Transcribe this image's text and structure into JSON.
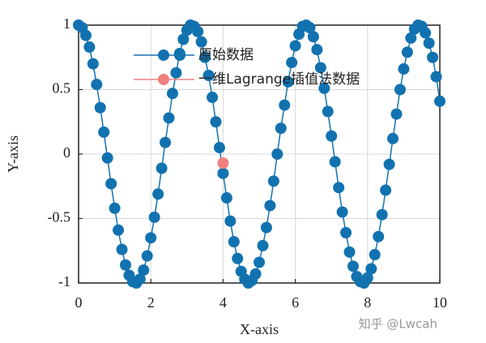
{
  "chart_data": {
    "type": "line",
    "xlabel": "X-axis",
    "ylabel": "Y-axis",
    "xlim": [
      0,
      10
    ],
    "ylim": [
      -1,
      1
    ],
    "xticks": [
      0,
      2,
      4,
      6,
      8,
      10
    ],
    "yticks": [
      -1,
      -0.5,
      0,
      0.5,
      1
    ],
    "grid": true,
    "legend": "top",
    "watermark": "知乎 @Lwcah",
    "series": [
      {
        "name": "原始数据",
        "color": "#1272b0",
        "x": [
          0,
          0.1,
          0.2,
          0.3,
          0.4,
          0.5,
          0.6,
          0.7,
          0.8,
          0.9,
          1,
          1.1,
          1.2,
          1.3,
          1.4,
          1.5,
          1.6,
          1.7,
          1.8,
          1.9,
          2,
          2.1,
          2.2,
          2.3,
          2.4,
          2.5,
          2.6,
          2.7,
          2.8,
          2.9,
          3,
          3.1,
          3.2,
          3.3,
          3.4,
          3.5,
          3.6,
          3.7,
          3.8,
          3.9,
          4,
          4.1,
          4.2,
          4.3,
          4.4,
          4.5,
          4.6,
          4.7,
          4.8,
          4.9,
          5,
          5.1,
          5.2,
          5.3,
          5.4,
          5.5,
          5.6,
          5.7,
          5.8,
          5.9,
          6,
          6.1,
          6.2,
          6.3,
          6.4,
          6.5,
          6.6,
          6.7,
          6.8,
          6.9,
          7,
          7.1,
          7.2,
          7.3,
          7.4,
          7.5,
          7.6,
          7.7,
          7.8,
          7.9,
          8,
          8.1,
          8.2,
          8.3,
          8.4,
          8.5,
          8.6,
          8.7,
          8.8,
          8.9,
          9,
          9.1,
          9.2,
          9.3,
          9.4,
          9.5,
          9.6,
          9.7,
          9.8,
          9.9,
          10
        ],
        "values": [
          1.0,
          0.98,
          0.92,
          0.83,
          0.7,
          0.54,
          0.36,
          0.17,
          -0.03,
          -0.23,
          -0.42,
          -0.59,
          -0.74,
          -0.86,
          -0.94,
          -0.99,
          -1.0,
          -0.97,
          -0.9,
          -0.79,
          -0.65,
          -0.49,
          -0.31,
          -0.11,
          0.09,
          0.28,
          0.47,
          0.63,
          0.78,
          0.89,
          0.96,
          1.0,
          0.99,
          0.95,
          0.87,
          0.75,
          0.61,
          0.44,
          0.25,
          0.05,
          -0.15,
          -0.34,
          -0.52,
          -0.68,
          -0.81,
          -0.91,
          -0.97,
          -1.0,
          -0.98,
          -0.93,
          -0.84,
          -0.71,
          -0.57,
          -0.4,
          -0.21,
          0.0,
          0.2,
          0.38,
          0.56,
          0.71,
          0.84,
          0.93,
          0.99,
          1.0,
          0.98,
          0.91,
          0.81,
          0.67,
          0.51,
          0.33,
          0.14,
          -0.06,
          -0.26,
          -0.45,
          -0.61,
          -0.76,
          -0.87,
          -0.95,
          -0.99,
          -1.0,
          -0.96,
          -0.89,
          -0.78,
          -0.64,
          -0.47,
          -0.28,
          -0.08,
          0.12,
          0.31,
          0.5,
          0.66,
          0.79,
          0.9,
          0.97,
          1.0,
          0.99,
          0.94,
          0.86,
          0.75,
          0.6,
          0.41
        ],
        "line": true
      },
      {
        "name": "一维Lagrange插值法数据",
        "color": "#f08080",
        "x": [
          4
        ],
        "values": [
          -0.07
        ],
        "line": false
      }
    ]
  }
}
